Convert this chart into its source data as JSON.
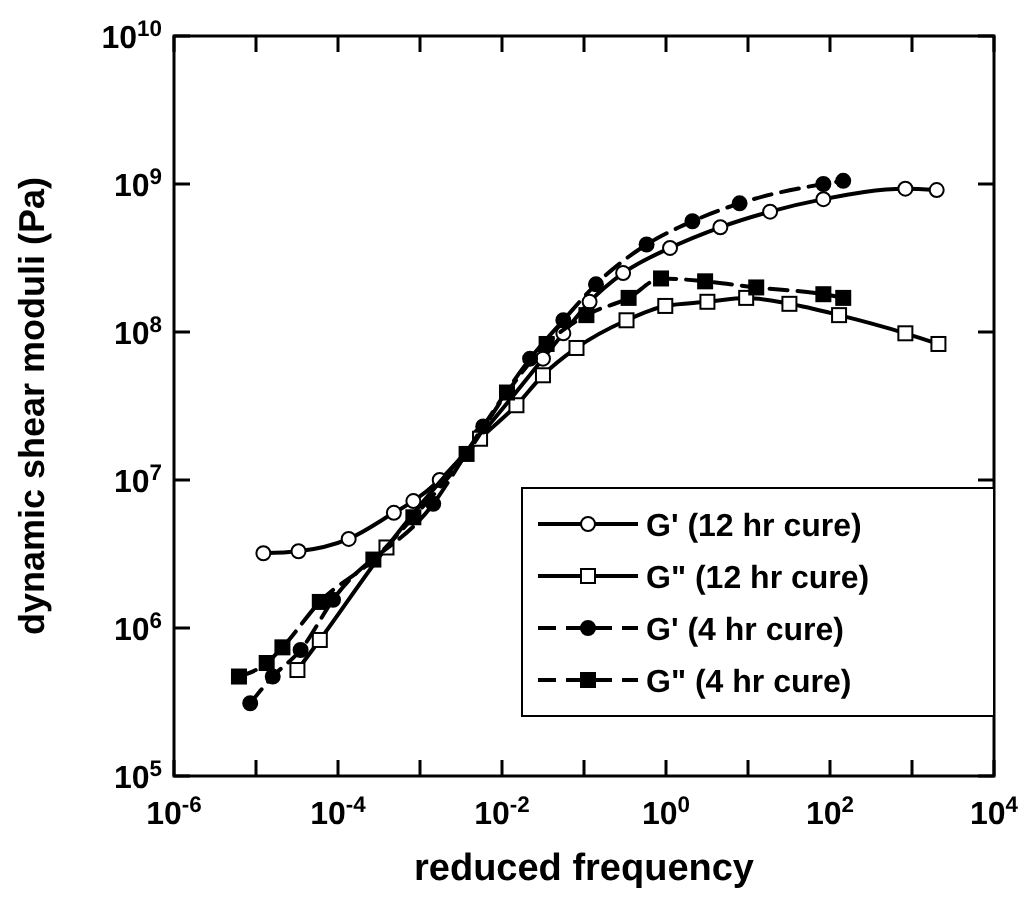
{
  "chart_data": {
    "type": "line",
    "xlabel": "reduced frequency",
    "ylabel": "dynamic shear moduli (Pa)",
    "log": "xy",
    "legend": "bottom right",
    "xlim": [
      1e-06,
      10000.0
    ],
    "ylim": [
      100000.0,
      10000000000.0
    ],
    "xticks": [
      {
        "value": 1e-06,
        "label": "10$^{-6}$"
      },
      {
        "value": 1e-05,
        "label": null
      },
      {
        "value": 0.0001,
        "label": "10$^{-4}$"
      },
      {
        "value": 0.001,
        "label": null
      },
      {
        "value": 0.01,
        "label": "10$^{-2}$"
      },
      {
        "value": 0.1,
        "label": null
      },
      {
        "value": 1,
        "label": "10$^{0}$"
      },
      {
        "value": 10,
        "label": null
      },
      {
        "value": 100,
        "label": "10$^{2}$"
      },
      {
        "value": 1000,
        "label": null
      },
      {
        "value": 10000.0,
        "label": "10$^{4}$"
      }
    ],
    "yticks": [
      {
        "value": 100000.0,
        "label": "10$^{5}$"
      },
      {
        "value": 1000000.0,
        "label": "10$^{6}$"
      },
      {
        "value": 10000000.0,
        "label": "10$^{7}$"
      },
      {
        "value": 100000000.0,
        "label": "10$^{8}$"
      },
      {
        "value": 1000000000.0,
        "label": "10$^{9}$"
      },
      {
        "value": 10000000000.0,
        "label": "10$^{10}$"
      }
    ],
    "series": [
      {
        "name": "G' (12 hr cure)",
        "color": "#000000",
        "marker": "circle",
        "line_style": "solid",
        "x": [
          1.23e-05,
          3.3e-05,
          0.000135,
          0.00048,
          0.00083,
          0.00174,
          0.0054,
          0.0316,
          0.056,
          0.117,
          0.3,
          1.12,
          4.6,
          18.6,
          83,
          830,
          2000
        ],
        "values": [
          3200000.0,
          3300000.0,
          4000000.0,
          6000000.0,
          7200000.0,
          10000000.0,
          20000000.0,
          66000000.0,
          98000000.0,
          160000000.0,
          250000000.0,
          370000000.0,
          510000000.0,
          650000000.0,
          790000000.0,
          930000000.0,
          910000000.0
        ]
      },
      {
        "name": "G\" (12 hr cure)",
        "color": "#000000",
        "marker": "square",
        "line_style": "solid",
        "x": [
          3.2e-05,
          6e-05,
          0.00039,
          0.0054,
          0.015,
          0.0316,
          0.081,
          0.33,
          0.98,
          3.2,
          9.5,
          32,
          129,
          830,
          2100
        ],
        "values": [
          520000.0,
          830000.0,
          3500000.0,
          19000000.0,
          32000000.0,
          51000000.0,
          78000000.0,
          120000000.0,
          150000000.0,
          160000000.0,
          170000000.0,
          155000000.0,
          130000000.0,
          98000000.0,
          83000000.0
        ]
      },
      {
        "name": "G' (4 hr cure)",
        "color": "#000000",
        "marker": "circle",
        "line_style": "dashed",
        "x": [
          8.5e-06,
          1.6e-05,
          3.5e-05,
          8.7e-05,
          0.00145,
          0.0059,
          0.022,
          0.056,
          0.14,
          0.58,
          2.1,
          7.9,
          83,
          145
        ],
        "values": [
          310000.0,
          470000.0,
          710000.0,
          1550000.0,
          6900000.0,
          23000000.0,
          66000000.0,
          120000000.0,
          210000000.0,
          390000000.0,
          560000000.0,
          740000000.0,
          1000000000.0,
          1050000000.0
        ]
      },
      {
        "name": "G\" (4 hr cure)",
        "color": "#000000",
        "marker": "square",
        "line_style": "dashed",
        "x": [
          6.2e-06,
          1.35e-05,
          2.1e-05,
          6e-05,
          0.00027,
          0.00083,
          0.0037,
          0.0115,
          0.035,
          0.107,
          0.35,
          0.87,
          3.0,
          12.6,
          83,
          145
        ],
        "values": [
          470000.0,
          580000.0,
          740000.0,
          1500000.0,
          2900000.0,
          5600000.0,
          15000000.0,
          39000000.0,
          83000000.0,
          130000000.0,
          170000000.0,
          230000000.0,
          220000000.0,
          200000000.0,
          180000000.0,
          170000000.0
        ]
      }
    ]
  }
}
